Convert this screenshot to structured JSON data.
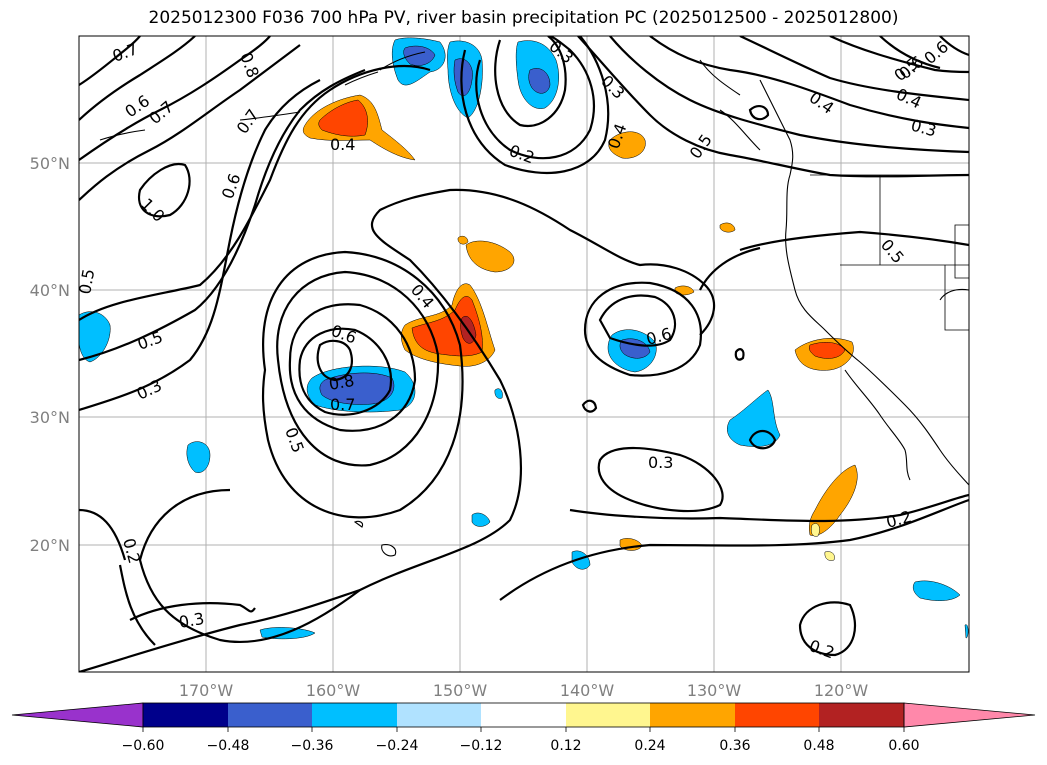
{
  "title": "2025012300 F036 700 hPa PV, river basin precipitation PC (2025012500 - 2025012800)",
  "map": {
    "lat_labels": [
      "50°N",
      "40°N",
      "30°N",
      "20°N"
    ],
    "lon_labels": [
      "170°W",
      "160°W",
      "150°W",
      "140°W",
      "130°W",
      "120°W"
    ],
    "lat_range": [
      10,
      60
    ],
    "lon_range": [
      -180,
      -110
    ],
    "gridlines": true,
    "contour_variable": "700 hPa PV",
    "contour_labels": [
      "0.7",
      "0.8",
      "0.6",
      "0.7",
      "0.7",
      "0.4",
      "1.0",
      "0.6",
      "0.5",
      "0.5",
      "0.3",
      "0.6",
      "0.8",
      "0.7",
      "0.5",
      "0.4",
      "0.2",
      "0.3",
      "0.3",
      "0.4",
      "0.5",
      "0.6",
      "0.2",
      "0.6",
      "0.4",
      "0.5",
      "0.6",
      "0.4",
      "0.3",
      "0.5",
      "0.3",
      "0.3",
      "0.2",
      "0.2"
    ]
  },
  "colorbar": {
    "ticks": [
      "−0.60",
      "−0.48",
      "−0.36",
      "−0.24",
      "−0.12",
      "0.12",
      "0.24",
      "0.36",
      "0.48",
      "0.60"
    ],
    "colors": [
      "#9932cc",
      "#00008b",
      "#3a5fcd",
      "#00bfff",
      "#b0e2ff",
      "#ffffff",
      "#fff68f",
      "#ffa500",
      "#ff4500",
      "#b22222",
      "#ff88aa"
    ],
    "extend": "both"
  }
}
